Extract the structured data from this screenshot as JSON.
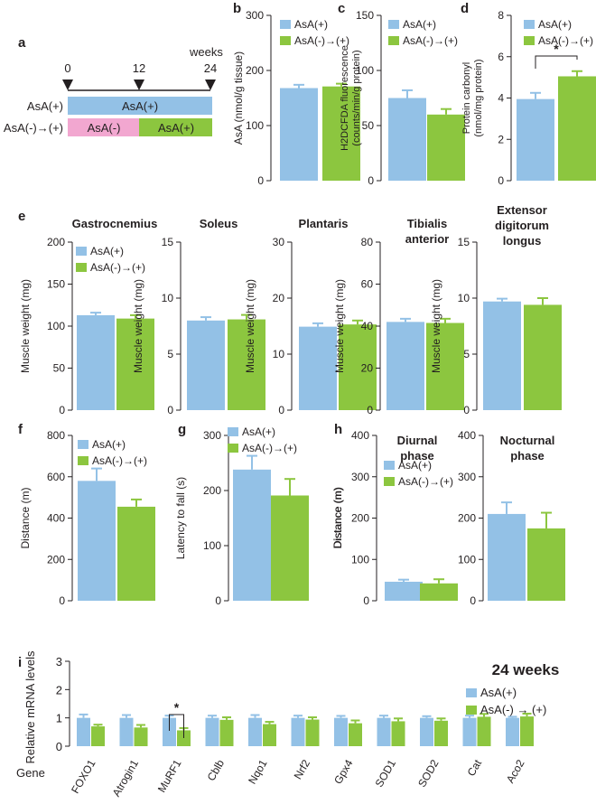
{
  "colors": {
    "blue": "#93c1e6",
    "green": "#8cc63f",
    "pink": "#f2a7d0",
    "axis": "#231f20"
  },
  "legend": {
    "ctrl": "AsA(+)",
    "treat": "AsA(-)→(+)",
    "treat_i": "AsA(-) → (+)"
  },
  "panel_a": {
    "letter": "a",
    "timeline_label": "weeks",
    "ticks": [
      "0",
      "12",
      "24"
    ],
    "rows": [
      {
        "label": "AsA(+)",
        "segments": [
          {
            "text": "AsA(+)",
            "color": "blue"
          }
        ]
      },
      {
        "label": "AsA(-)→(+)",
        "segments": [
          {
            "text": "AsA(-)",
            "color": "pink"
          },
          {
            "text": "AsA(+)",
            "color": "green"
          }
        ]
      }
    ]
  },
  "chart_data": [
    {
      "id": "b",
      "type": "bar",
      "letter": "b",
      "title": "",
      "ylabel": "AsA (nmol/g tissue)",
      "ylim": [
        0,
        300
      ],
      "yticks": [
        "0",
        "100",
        "200",
        "300"
      ],
      "categories": [
        "AsA(+)",
        "AsA(-)→(+)"
      ],
      "values": [
        168,
        171
      ],
      "errors": [
        6,
        5
      ],
      "sig": []
    },
    {
      "id": "c",
      "type": "bar",
      "letter": "c",
      "title": "",
      "ylabel": "H2DCFDA fluorescence (counts/min/g protein)",
      "ylim": [
        0,
        150
      ],
      "yticks": [
        "0",
        "50",
        "100",
        "150"
      ],
      "categories": [
        "AsA(+)",
        "AsA(-)→(+)"
      ],
      "values": [
        75,
        60
      ],
      "errors": [
        7,
        5
      ],
      "sig": []
    },
    {
      "id": "d",
      "type": "bar",
      "letter": "d",
      "title": "",
      "ylabel": "Protein carbonyl (nmol/mg protein)",
      "ylim": [
        0,
        8
      ],
      "yticks": [
        "0",
        "2",
        "4",
        "6",
        "8"
      ],
      "categories": [
        "AsA(+)",
        "AsA(-)→(+)"
      ],
      "values": [
        3.95,
        5.05
      ],
      "errors": [
        0.3,
        0.25
      ],
      "sig": [
        "*"
      ]
    },
    {
      "id": "e1",
      "type": "bar",
      "letter": "e",
      "title": "Gastrocnemius",
      "ylabel": "Muscle weight (mg)",
      "ylim": [
        0,
        200
      ],
      "yticks": [
        "0",
        "50",
        "100",
        "150",
        "200"
      ],
      "categories": [
        "AsA(+)",
        "AsA(-)→(+)"
      ],
      "values": [
        113,
        109
      ],
      "errors": [
        3,
        4
      ],
      "sig": []
    },
    {
      "id": "e2",
      "type": "bar",
      "letter": "",
      "title": "Soleus",
      "ylabel": "Muscle weight (mg)",
      "ylim": [
        0,
        15
      ],
      "yticks": [
        "0",
        "5",
        "10",
        "15"
      ],
      "categories": [
        "AsA(+)",
        "AsA(-)→(+)"
      ],
      "values": [
        8.0,
        8.1
      ],
      "errors": [
        0.3,
        0.4
      ],
      "sig": []
    },
    {
      "id": "e3",
      "type": "bar",
      "letter": "",
      "title": "Plantaris",
      "ylabel": "Muscle weight (mg)",
      "ylim": [
        0,
        30
      ],
      "yticks": [
        "0",
        "10",
        "20",
        "30"
      ],
      "categories": [
        "AsA(+)",
        "AsA(-)→(+)"
      ],
      "values": [
        14.9,
        15.3
      ],
      "errors": [
        0.6,
        0.7
      ],
      "sig": []
    },
    {
      "id": "e4",
      "type": "bar",
      "letter": "",
      "title": "Tibialis anterior",
      "ylabel": "Muscle weight (mg)",
      "ylim": [
        0,
        80
      ],
      "yticks": [
        "0",
        "20",
        "40",
        "60",
        "80"
      ],
      "categories": [
        "AsA(+)",
        "AsA(-)→(+)"
      ],
      "values": [
        42,
        41.5
      ],
      "errors": [
        1.5,
        2
      ],
      "sig": []
    },
    {
      "id": "e5",
      "type": "bar",
      "letter": "",
      "title": "Extensor digitorum longus",
      "ylabel": "Muscle weight (mg)",
      "ylim": [
        0,
        15
      ],
      "yticks": [
        "0",
        "5",
        "10",
        "15"
      ],
      "categories": [
        "AsA(+)",
        "AsA(-)→(+)"
      ],
      "values": [
        9.7,
        9.4
      ],
      "errors": [
        0.25,
        0.6
      ],
      "sig": []
    },
    {
      "id": "f",
      "type": "bar",
      "letter": "f",
      "title": "",
      "ylabel": "Distance (m)",
      "ylim": [
        0,
        800
      ],
      "yticks": [
        "0",
        "200",
        "400",
        "600",
        "800"
      ],
      "categories": [
        "AsA(+)",
        "AsA(-)→(+)"
      ],
      "values": [
        580,
        455
      ],
      "errors": [
        60,
        35
      ],
      "sig": []
    },
    {
      "id": "g",
      "type": "bar",
      "letter": "g",
      "title": "",
      "ylabel": "Latency to fall (s)",
      "ylim": [
        0,
        300
      ],
      "yticks": [
        "0",
        "100",
        "200",
        "300"
      ],
      "categories": [
        "AsA(+)",
        "AsA(-)→(+)"
      ],
      "values": [
        238,
        191
      ],
      "errors": [
        25,
        30
      ],
      "sig": []
    },
    {
      "id": "h1",
      "type": "bar",
      "letter": "h",
      "title": "Diurnal phase",
      "ylabel": "Distance (m)",
      "ylim": [
        0,
        400
      ],
      "yticks": [
        "0",
        "100",
        "200",
        "300",
        "400"
      ],
      "categories": [
        "AsA(+)",
        "AsA(-)→(+)"
      ],
      "values": [
        46,
        42
      ],
      "errors": [
        5,
        10
      ],
      "sig": []
    },
    {
      "id": "h2",
      "type": "bar",
      "letter": "",
      "title": "Nocturnal phase",
      "ylabel": "",
      "ylim": [
        0,
        400
      ],
      "yticks": [
        "0",
        "100",
        "200",
        "300",
        "400"
      ],
      "categories": [
        "AsA(+)",
        "AsA(-)→(+)"
      ],
      "values": [
        210,
        175
      ],
      "errors": [
        28,
        38
      ],
      "sig": []
    },
    {
      "id": "i",
      "type": "bar",
      "letter": "i",
      "title": "24 weeks",
      "ylabel": "Relative mRNA levels",
      "xlabel": "Gene",
      "ylim": [
        0,
        3
      ],
      "yticks": [
        "0",
        "1",
        "2",
        "3"
      ],
      "categories": [
        "FOXO1",
        "Atrogin1",
        "MuRF1",
        "Cblb",
        "Nqo1",
        "Nrf2",
        "Gpx4",
        "SOD1",
        "SOD2",
        "Cat",
        "Aco2"
      ],
      "series": [
        {
          "name": "AsA(+)",
          "values": [
            1.0,
            1.0,
            1.0,
            1.0,
            1.0,
            1.0,
            1.0,
            1.0,
            1.0,
            1.0,
            1.0
          ],
          "errors": [
            0.12,
            0.1,
            0.08,
            0.08,
            0.1,
            0.08,
            0.07,
            0.08,
            0.06,
            0.08,
            0.04
          ]
        },
        {
          "name": "AsA(-)→(+)",
          "values": [
            0.7,
            0.66,
            0.56,
            0.93,
            0.78,
            0.94,
            0.81,
            0.88,
            0.9,
            1.04,
            1.05
          ],
          "errors": [
            0.06,
            0.09,
            0.08,
            0.09,
            0.08,
            0.08,
            0.1,
            0.1,
            0.08,
            0.1,
            0.1
          ]
        }
      ],
      "sig": [
        "*"
      ]
    }
  ]
}
